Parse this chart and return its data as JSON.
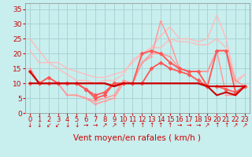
{
  "bg_color": "#c8eeee",
  "grid_color": "#aad4d4",
  "xlabel": "Vent moyen/en rafales ( km/h )",
  "xlim": [
    -0.5,
    23.5
  ],
  "ylim": [
    0,
    37
  ],
  "yticks": [
    0,
    5,
    10,
    15,
    20,
    25,
    30,
    35
  ],
  "xticks": [
    0,
    1,
    2,
    3,
    4,
    5,
    6,
    7,
    8,
    9,
    10,
    11,
    12,
    13,
    14,
    15,
    16,
    17,
    18,
    19,
    20,
    21,
    22,
    23
  ],
  "series": [
    {
      "x": [
        0,
        1,
        2,
        3,
        4,
        5,
        6,
        7,
        8,
        9,
        10,
        11,
        12,
        13,
        14,
        15,
        16,
        17,
        18,
        19,
        20,
        21,
        22,
        23
      ],
      "y": [
        25,
        21,
        17,
        17,
        15,
        14,
        13,
        12,
        12,
        13,
        14,
        17,
        20,
        22,
        26,
        29,
        25,
        25,
        24,
        25,
        33,
        25,
        11,
        13
      ],
      "color": "#ffbbbb",
      "lw": 1.0,
      "marker": null
    },
    {
      "x": [
        0,
        1,
        2,
        3,
        4,
        5,
        6,
        7,
        8,
        9,
        10,
        11,
        12,
        13,
        14,
        15,
        16,
        17,
        18,
        19,
        20,
        21,
        22,
        23
      ],
      "y": [
        21,
        17,
        17,
        15,
        13,
        11,
        11,
        10,
        11,
        11,
        13,
        18,
        20,
        22,
        22,
        25,
        24,
        24,
        23,
        23,
        25,
        22,
        10,
        13
      ],
      "color": "#ffbbbb",
      "lw": 1.0,
      "marker": null
    },
    {
      "x": [
        0,
        1,
        2,
        3,
        4,
        5,
        6,
        7,
        8,
        9,
        10,
        11,
        12,
        13,
        14,
        15,
        16,
        17,
        18,
        19,
        20,
        21,
        22,
        23
      ],
      "y": [
        15,
        10,
        12,
        10,
        6,
        6,
        5,
        3,
        4,
        5,
        10,
        10,
        17,
        20,
        20,
        19,
        15,
        14,
        14,
        14,
        21,
        6,
        6,
        9
      ],
      "color": "#ff9999",
      "lw": 1.1,
      "marker": "+",
      "ms": 3.5
    },
    {
      "x": [
        0,
        1,
        2,
        3,
        4,
        5,
        6,
        7,
        8,
        9,
        10,
        11,
        12,
        13,
        14,
        15,
        16,
        17,
        18,
        19,
        20,
        21,
        22,
        23
      ],
      "y": [
        10,
        10,
        10,
        10,
        6,
        6,
        5,
        4,
        5,
        6,
        11,
        10,
        17,
        19,
        31,
        24,
        15,
        14,
        14,
        14,
        21,
        21,
        11,
        9
      ],
      "color": "#ff9999",
      "lw": 1.1,
      "marker": "+",
      "ms": 3.5
    },
    {
      "x": [
        0,
        1,
        2,
        3,
        4,
        5,
        6,
        7,
        8,
        9,
        10,
        11,
        12,
        13,
        14,
        15,
        16,
        17,
        18,
        19,
        20,
        21,
        22,
        23
      ],
      "y": [
        14,
        10,
        12,
        10,
        10,
        10,
        8,
        6,
        7,
        10,
        10,
        10,
        20,
        21,
        20,
        17,
        15,
        14,
        14,
        9,
        21,
        21,
        7,
        9
      ],
      "color": "#ff5555",
      "lw": 1.3,
      "marker": "D",
      "ms": 2.5
    },
    {
      "x": [
        0,
        1,
        2,
        3,
        4,
        5,
        6,
        7,
        8,
        9,
        10,
        11,
        12,
        13,
        14,
        15,
        16,
        17,
        18,
        19,
        20,
        21,
        22,
        23
      ],
      "y": [
        10,
        10,
        10,
        10,
        10,
        10,
        8,
        5,
        6,
        10,
        10,
        10,
        10,
        15,
        17,
        15,
        14,
        13,
        11,
        9,
        9,
        8,
        7,
        9
      ],
      "color": "#ff5555",
      "lw": 1.3,
      "marker": "D",
      "ms": 2.5
    },
    {
      "x": [
        0,
        1,
        2,
        3,
        4,
        5,
        6,
        7,
        8,
        9,
        10,
        11,
        12,
        13,
        14,
        15,
        16,
        17,
        18,
        19,
        20,
        21,
        22,
        23
      ],
      "y": [
        14,
        10,
        10,
        10,
        10,
        10,
        10,
        10,
        10,
        9,
        10,
        10,
        10,
        10,
        10,
        10,
        10,
        10,
        10,
        9,
        9,
        9,
        9,
        9
      ],
      "color": "#cc0000",
      "lw": 1.5,
      "marker": null
    },
    {
      "x": [
        0,
        1,
        2,
        3,
        4,
        5,
        6,
        7,
        8,
        9,
        10,
        11,
        12,
        13,
        14,
        15,
        16,
        17,
        18,
        19,
        20,
        21,
        22,
        23
      ],
      "y": [
        10,
        10,
        10,
        10,
        10,
        10,
        10,
        10,
        10,
        9,
        10,
        10,
        10,
        10,
        10,
        10,
        10,
        10,
        10,
        9,
        6,
        7,
        6,
        9
      ],
      "color": "#cc0000",
      "lw": 1.5,
      "marker": null
    }
  ],
  "arrows": [
    "↓",
    "↓",
    "↙",
    "↙",
    "↓",
    "↓",
    "→",
    "→",
    "↗",
    "↗",
    "↑",
    "↑",
    "↑",
    "↑",
    "↑",
    "↑",
    "→",
    "→",
    "→",
    "↗",
    "↑",
    "↑",
    "↗",
    "↗"
  ],
  "tick_color": "#cc0000",
  "xlabel_color": "#cc0000",
  "xlabel_fontsize": 7.5,
  "tick_fontsize": 6.0,
  "ytick_fontsize": 6.5,
  "arrow_fontsize": 5.5
}
